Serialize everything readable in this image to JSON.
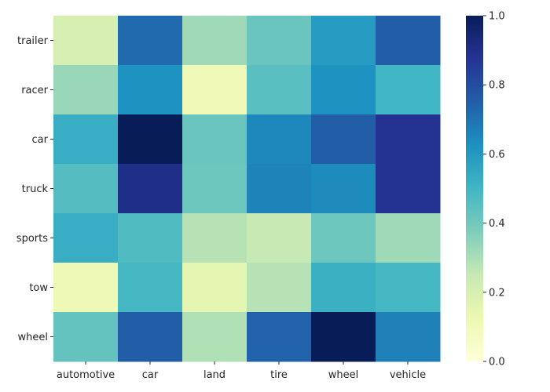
{
  "chart_data": {
    "type": "heatmap",
    "title": "",
    "xlabel": "",
    "ylabel": "",
    "x_categories": [
      "automotive",
      "car",
      "land",
      "tire",
      "wheel",
      "vehicle"
    ],
    "y_categories": [
      "trailer",
      "racer",
      "car",
      "truck",
      "sports",
      "tow",
      "wheel"
    ],
    "values": [
      [
        0.2,
        0.72,
        0.32,
        0.42,
        0.59,
        0.75
      ],
      [
        0.33,
        0.62,
        0.1,
        0.45,
        0.62,
        0.5
      ],
      [
        0.53,
        1.0,
        0.42,
        0.65,
        0.75,
        0.88
      ],
      [
        0.46,
        0.9,
        0.41,
        0.66,
        0.64,
        0.88
      ],
      [
        0.53,
        0.47,
        0.28,
        0.25,
        0.41,
        0.32
      ],
      [
        0.11,
        0.49,
        0.15,
        0.28,
        0.52,
        0.49
      ],
      [
        0.43,
        0.75,
        0.29,
        0.74,
        1.0,
        0.67
      ]
    ],
    "colorscale": "YlGnBu",
    "vmin": 0.0,
    "vmax": 1.0,
    "colorbar_ticks": [
      "0.0",
      "0.2",
      "0.4",
      "0.6",
      "0.8",
      "1.0"
    ],
    "grid": false,
    "legend": "colorbar-right"
  }
}
